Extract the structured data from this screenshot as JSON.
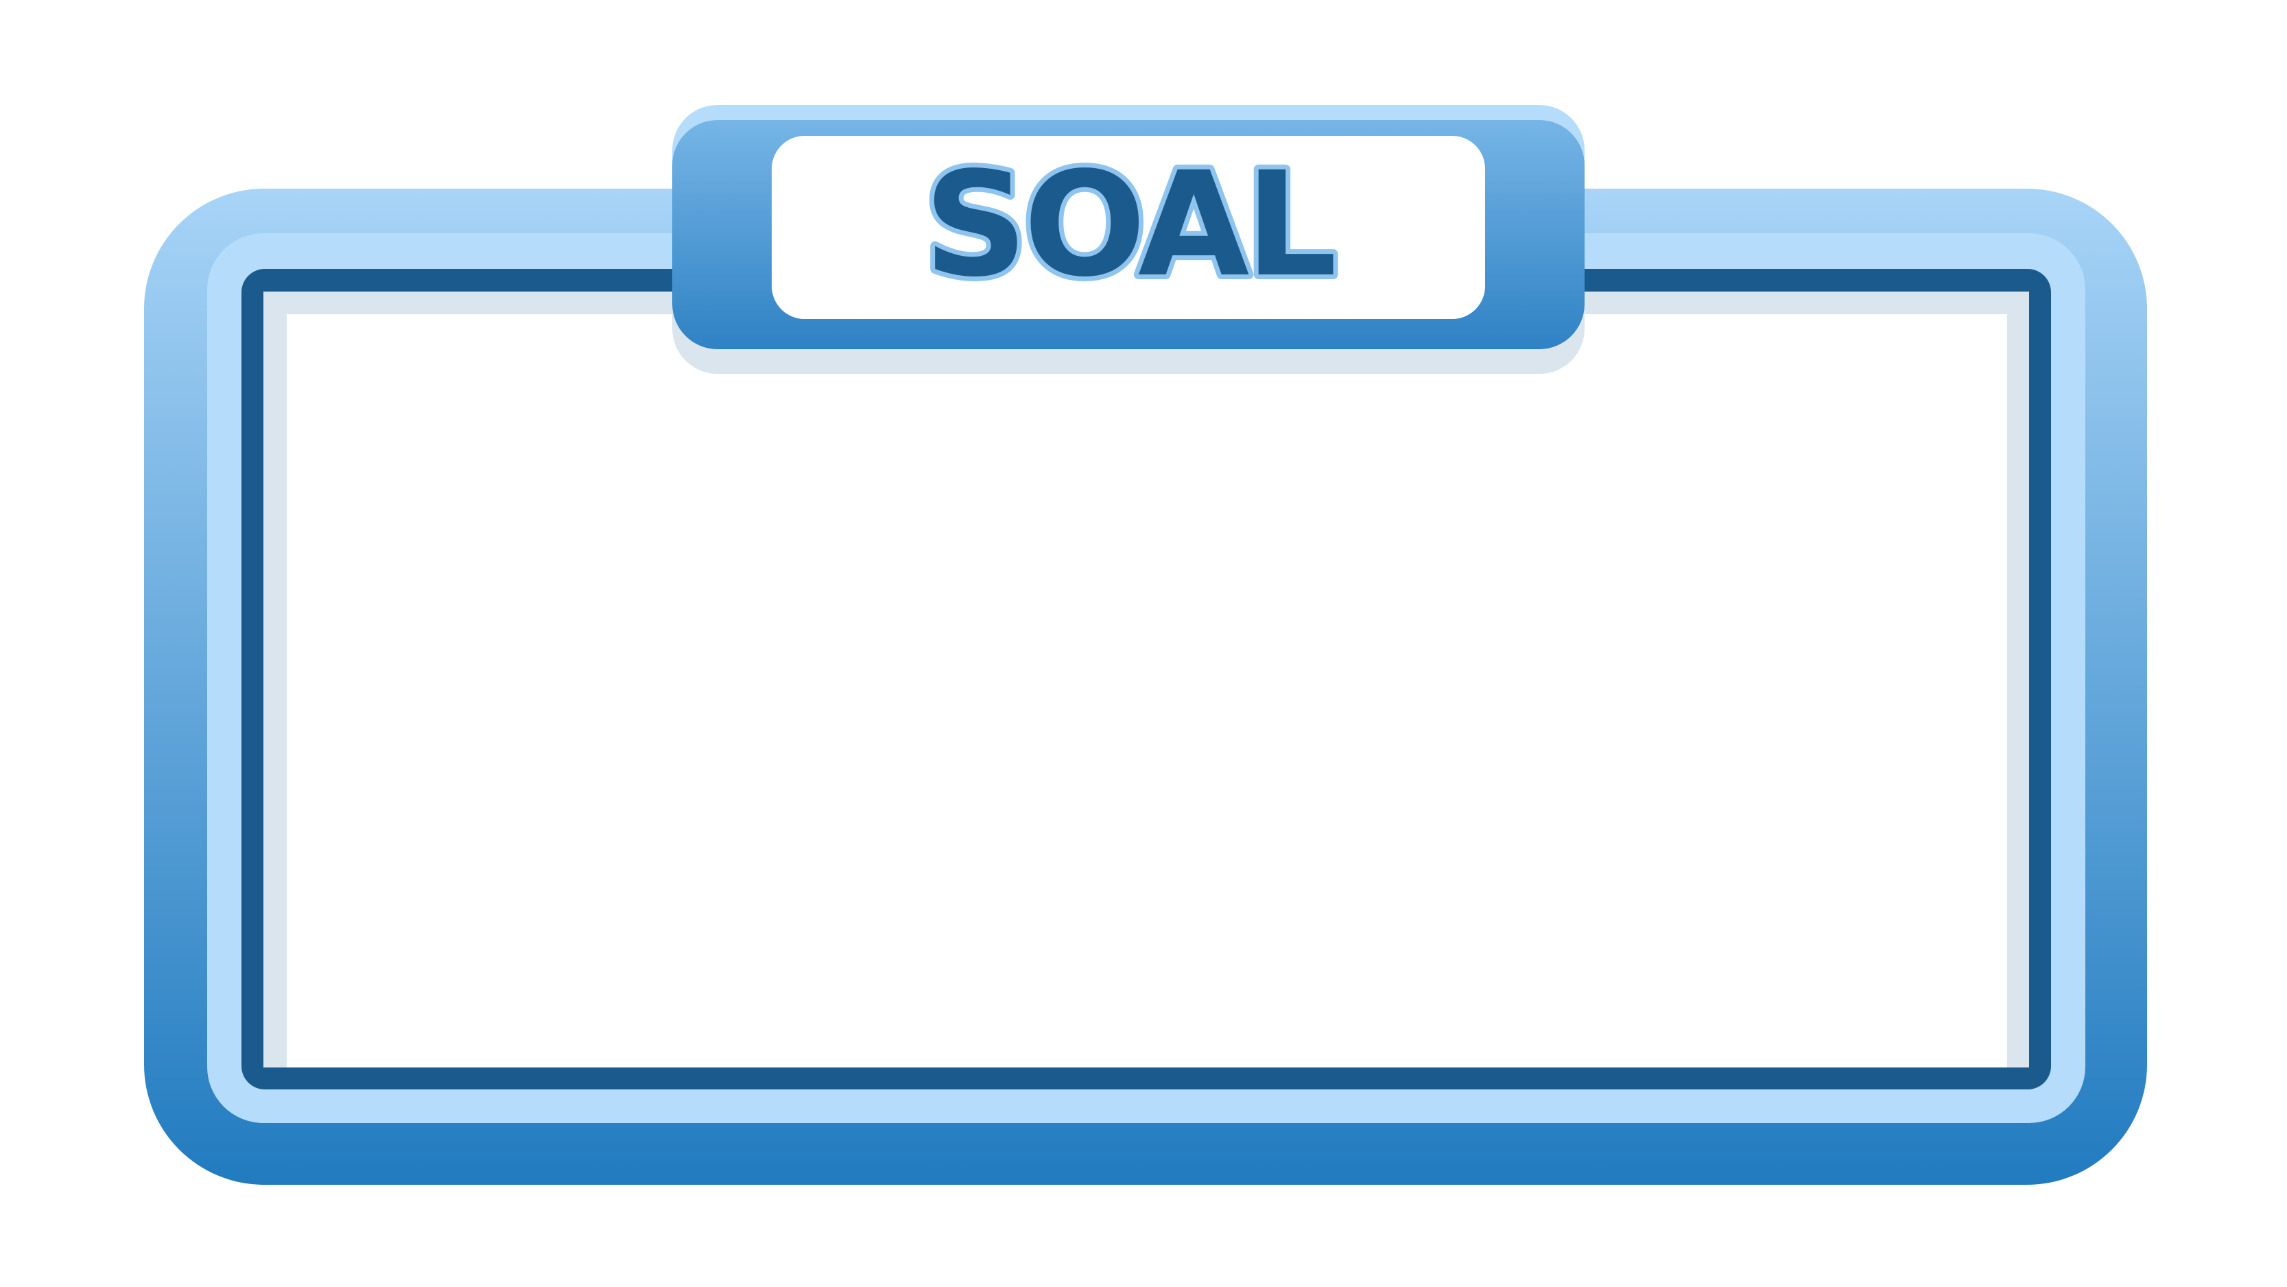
{
  "board": {
    "title": "SOAL",
    "content": ""
  },
  "colors": {
    "outer_gradient_top": "#a8d4f7",
    "outer_gradient_bottom": "#217bbf",
    "inner_band": "#b5dcfb",
    "border_dark": "#1b5a8c",
    "shadow_gray": "#dbe5ee",
    "panel_white": "#ffffff",
    "title_tab_top": "#76b5e6",
    "title_tab_bottom": "#2f82c4",
    "title_text_fill": "#1b5a8c",
    "title_text_outline": "#8ec4ee"
  }
}
